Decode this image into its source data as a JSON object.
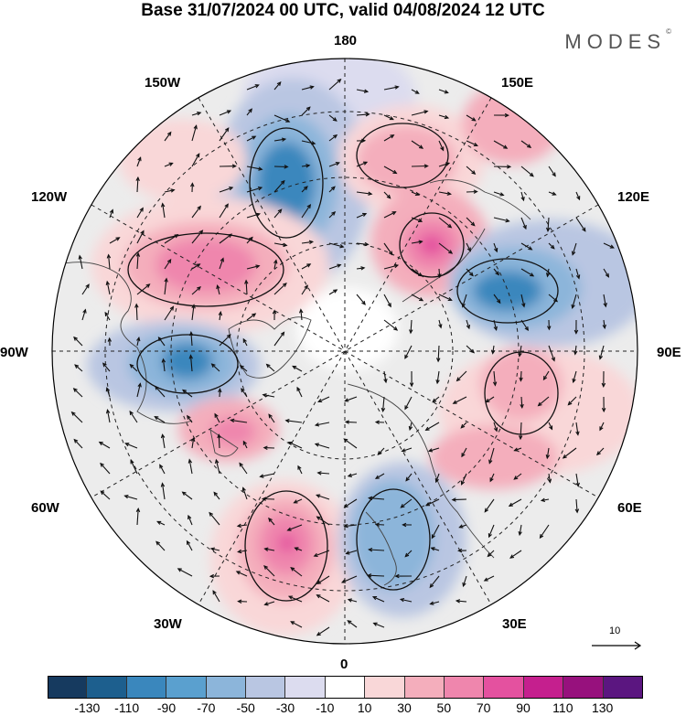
{
  "title": "Base 31/07/2024 00 UTC, valid 04/08/2024 12 UTC",
  "brand": "MODES",
  "brand_mark": "©",
  "lon_labels": {
    "top": "180",
    "top_left": "150W",
    "top_right": "150E",
    "upper_left": "120W",
    "upper_right": "120E",
    "left": "90W",
    "right": "90E",
    "lower_left": "60W",
    "lower_right": "60E",
    "bottom_left": "30W",
    "bottom_right": "30E",
    "bottom": "0"
  },
  "reference_vector": "10",
  "colorbar": {
    "colors": [
      "#163a5f",
      "#1d5f8e",
      "#3a87bd",
      "#5aa0cf",
      "#8cb5da",
      "#b9c6e2",
      "#dcdcef",
      "#ffffff",
      "#f9d7d8",
      "#f4aebc",
      "#ef86ad",
      "#e4519f",
      "#c51f8e",
      "#97117d",
      "#5b1680"
    ],
    "ticks": [
      "-130",
      "-110",
      "-90",
      "-70",
      "-50",
      "-30",
      "-10",
      "10",
      "30",
      "50",
      "70",
      "90",
      "110",
      "130"
    ]
  }
}
